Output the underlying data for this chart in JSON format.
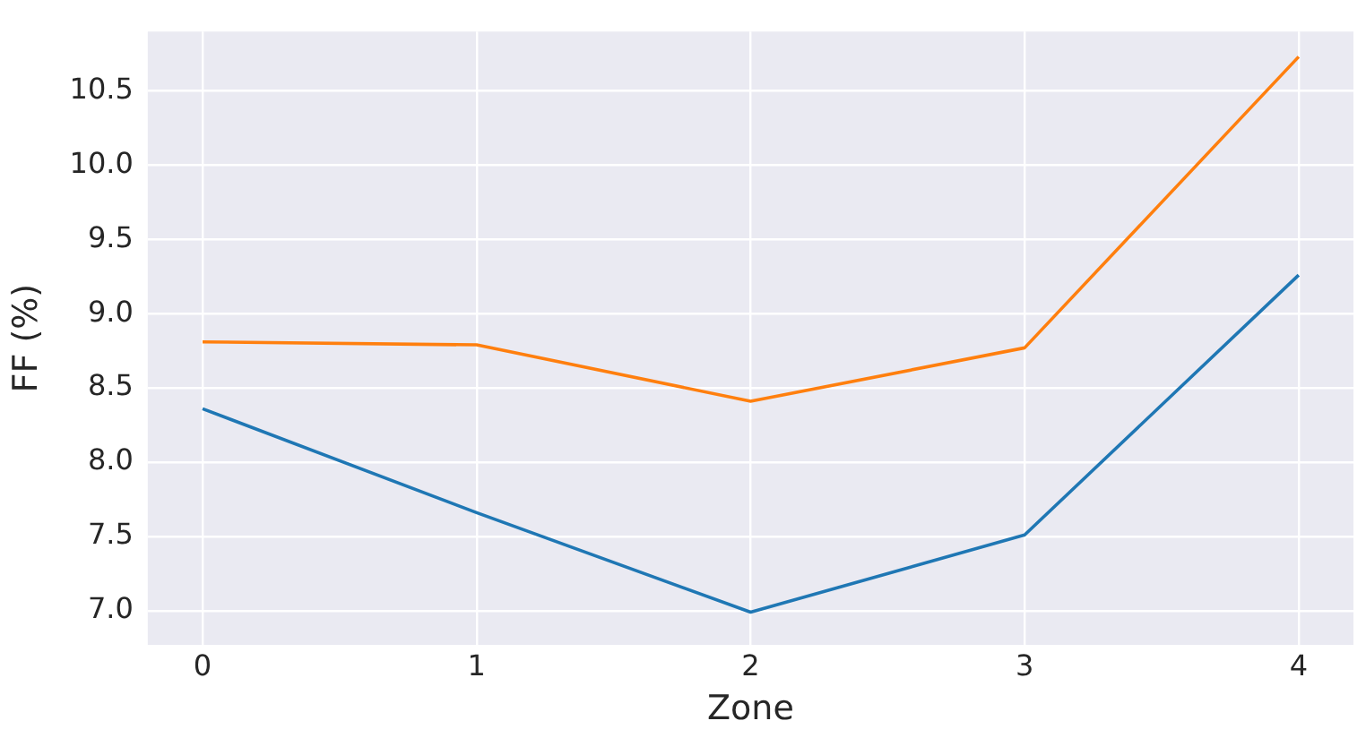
{
  "chart_data": {
    "type": "line",
    "xlabel": "Zone",
    "ylabel": "FF (%)",
    "x": [
      0,
      1,
      2,
      3,
      4
    ],
    "series": [
      {
        "color": "#1f77b4",
        "values": [
          8.36,
          7.66,
          6.99,
          7.51,
          9.26
        ]
      },
      {
        "color": "#ff7f0e",
        "values": [
          8.81,
          8.79,
          8.41,
          8.77,
          10.73
        ]
      }
    ],
    "xlim": [
      -0.2,
      4.2
    ],
    "xticks": [
      0,
      1,
      2,
      3,
      4
    ],
    "ylim": [
      6.77,
      10.9
    ],
    "yticks": [
      {
        "value": 7,
        "label": "7.0"
      },
      7.5,
      {
        "value": 8,
        "label": "8.0"
      },
      8.5,
      {
        "value": 9,
        "label": "9.0"
      },
      9.5,
      {
        "value": 10,
        "label": "10.0"
      },
      10.5
    ],
    "grid": true,
    "legend": false,
    "marker": "none",
    "line_style": "solid"
  }
}
